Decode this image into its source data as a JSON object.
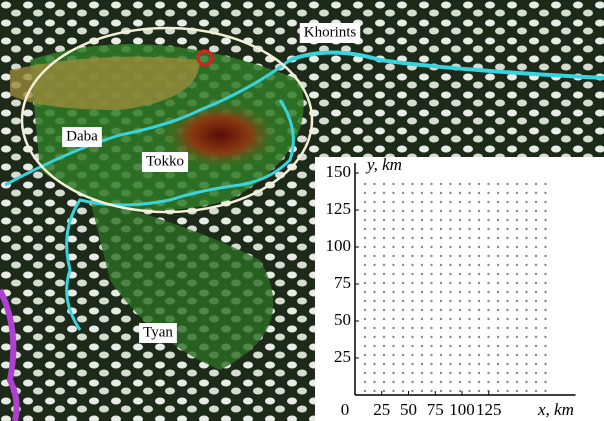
{
  "map": {
    "labels": [
      "Khorints",
      "Daba",
      "Tokko",
      "Tyan"
    ]
  },
  "chart_data": {
    "type": "scatter",
    "xlabel": "x, km",
    "ylabel": "y, km",
    "xlim": [
      0,
      150
    ],
    "ylim": [
      0,
      150
    ],
    "xticks": [
      0,
      25,
      50,
      75,
      100,
      125
    ],
    "yticks": [
      25,
      50,
      75,
      100,
      125,
      150
    ]
  }
}
